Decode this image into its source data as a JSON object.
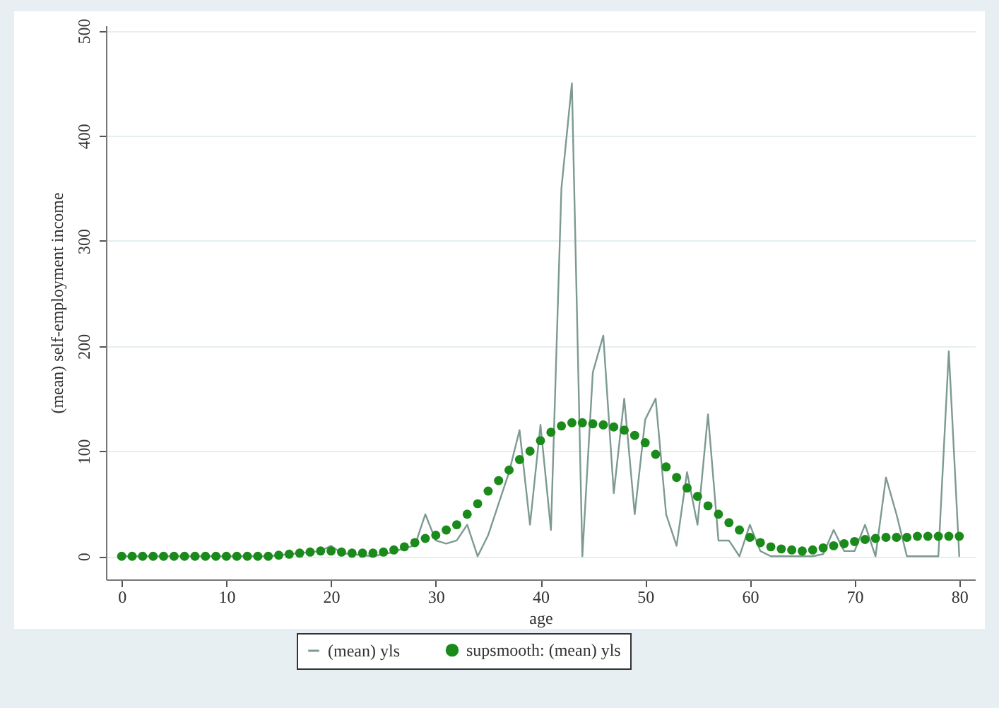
{
  "chart_data": {
    "type": "line",
    "xlabel": "age",
    "ylabel": "(mean) self-employment income",
    "x": [
      0,
      1,
      2,
      3,
      4,
      5,
      6,
      7,
      8,
      9,
      10,
      11,
      12,
      13,
      14,
      15,
      16,
      17,
      18,
      19,
      20,
      21,
      22,
      23,
      24,
      25,
      26,
      27,
      28,
      29,
      30,
      31,
      32,
      33,
      34,
      35,
      36,
      37,
      38,
      39,
      40,
      41,
      42,
      43,
      44,
      45,
      46,
      47,
      48,
      49,
      50,
      51,
      52,
      53,
      54,
      55,
      56,
      57,
      58,
      59,
      60,
      61,
      62,
      63,
      64,
      65,
      66,
      67,
      68,
      69,
      70,
      71,
      72,
      73,
      74,
      75,
      76,
      77,
      78,
      79,
      80
    ],
    "series": [
      {
        "name": "(mean) yls",
        "type": "line",
        "color": "#7d9a92",
        "values": [
          0,
          0,
          0,
          0,
          0,
          0,
          0,
          0,
          0,
          0,
          0,
          0,
          0,
          0,
          0,
          1,
          2,
          3,
          4,
          5,
          10,
          3,
          2,
          1,
          0,
          2,
          4,
          8,
          10,
          40,
          15,
          12,
          15,
          30,
          0,
          20,
          50,
          80,
          120,
          30,
          125,
          25,
          350,
          450,
          0,
          175,
          210,
          60,
          150,
          40,
          130,
          150,
          40,
          10,
          80,
          30,
          135,
          15,
          15,
          0,
          30,
          5,
          0,
          0,
          0,
          0,
          0,
          2,
          25,
          5,
          5,
          30,
          0,
          75,
          40,
          0,
          0,
          0,
          0,
          195,
          0
        ]
      },
      {
        "name": "supsmooth: (mean) yls",
        "type": "scatter",
        "color": "#1a8a1a",
        "values": [
          0,
          0,
          0,
          0,
          0,
          0,
          0,
          0,
          0,
          0,
          0,
          0,
          0,
          0,
          0,
          1,
          2,
          3,
          4,
          5,
          5,
          4,
          3,
          3,
          3,
          4,
          6,
          9,
          13,
          17,
          20,
          25,
          30,
          40,
          50,
          62,
          72,
          82,
          92,
          100,
          110,
          118,
          124,
          127,
          127,
          126,
          125,
          123,
          120,
          115,
          108,
          97,
          85,
          75,
          65,
          57,
          48,
          40,
          32,
          25,
          18,
          13,
          9,
          7,
          6,
          5,
          6,
          8,
          10,
          12,
          14,
          16,
          17,
          18,
          18,
          18,
          19,
          19,
          19,
          19,
          19
        ]
      }
    ],
    "xlim": [
      -1.5,
      81.5
    ],
    "xticks": [
      0,
      10,
      20,
      30,
      40,
      50,
      60,
      70,
      80
    ],
    "ylim": [
      -22,
      505
    ],
    "yticks": [
      0,
      100,
      200,
      300,
      400,
      500
    ],
    "grid": "y",
    "legend": "bottom"
  }
}
